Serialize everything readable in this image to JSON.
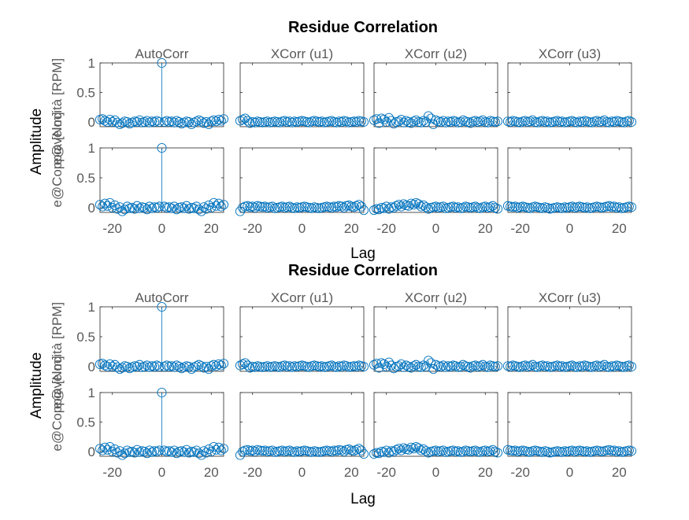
{
  "chart_data": [
    {
      "type": "stem",
      "title": "Residue Correlation",
      "xlabel": "Lag",
      "ylabel": "Amplitude",
      "output_labels": [
        "e@velocità [RPM]",
        "e@Coppia [Nm]"
      ],
      "columns": [
        "AutoCorr",
        "XCorr (u1)",
        "XCorr (u2)",
        "XCorr (u3)"
      ],
      "xlim": [
        -25,
        25
      ],
      "xticks": [
        -20,
        0,
        20
      ],
      "ylim_row1": [
        0,
        1
      ],
      "yticks_row1": [
        0,
        0.5,
        1
      ],
      "yticks_row1_labels": [
        "0",
        "0.5",
        "1"
      ],
      "ylim_row2": [
        0,
        1
      ],
      "yticks_row2": [
        0,
        0.5,
        1
      ],
      "yticks_row2_labels": [
        "0",
        "0.5",
        "1"
      ],
      "lags": [
        -25,
        -24,
        -23,
        -22,
        -21,
        -20,
        -19,
        -18,
        -17,
        -16,
        -15,
        -14,
        -13,
        -12,
        -11,
        -10,
        -9,
        -8,
        -7,
        -6,
        -5,
        -4,
        -3,
        -2,
        -1,
        0,
        1,
        2,
        3,
        4,
        5,
        6,
        7,
        8,
        9,
        10,
        11,
        12,
        13,
        14,
        15,
        16,
        17,
        18,
        19,
        20,
        21,
        22,
        23,
        24,
        25
      ],
      "series": [
        {
          "row": 0,
          "col": 0,
          "values": [
            0.04,
            0.05,
            0.02,
            0.0,
            0.04,
            0.0,
            0.03,
            -0.01,
            -0.04,
            -0.02,
            0.01,
            0.0,
            -0.03,
            -0.01,
            0.01,
            0.0,
            0.03,
            -0.01,
            0.0,
            0.02,
            -0.01,
            0.01,
            0.0,
            0.02,
            0.0,
            1.0,
            0.0,
            0.02,
            0.0,
            0.01,
            -0.01,
            0.02,
            0.0,
            -0.03,
            -0.01,
            0.01,
            0.0,
            -0.04,
            -0.01,
            0.01,
            0.03,
            0.01,
            -0.02,
            0.0,
            -0.04,
            0.01,
            0.03,
            0.01,
            0.04,
            0.02,
            0.05
          ]
        },
        {
          "row": 0,
          "col": 1,
          "values": [
            0.02,
            0.04,
            0.06,
            0.02,
            -0.02,
            0.0,
            -0.01,
            0.01,
            0.0,
            -0.01,
            0.0,
            0.01,
            -0.01,
            0.0,
            0.01,
            0.0,
            -0.01,
            0.01,
            0.02,
            0.0,
            0.01,
            -0.01,
            0.01,
            0.0,
            0.01,
            0.02,
            0.01,
            0.0,
            -0.01,
            0.01,
            0.02,
            0.01,
            0.0,
            0.01,
            -0.01,
            0.0,
            0.01,
            0.02,
            0.0,
            -0.01,
            0.01,
            0.0,
            0.02,
            0.01,
            -0.01,
            0.0,
            0.01,
            0.0,
            0.02,
            0.01,
            0.0
          ]
        },
        {
          "row": 0,
          "col": 2,
          "values": [
            0.03,
            0.05,
            -0.02,
            0.06,
            0.04,
            0.0,
            0.07,
            0.02,
            -0.03,
            0.0,
            0.01,
            0.04,
            -0.01,
            0.02,
            0.0,
            -0.02,
            0.01,
            0.03,
            0.0,
            -0.01,
            0.02,
            0.0,
            0.1,
            0.06,
            -0.04,
            0.03,
            0.01,
            0.0,
            0.02,
            -0.01,
            0.01,
            0.0,
            0.02,
            0.01,
            -0.01,
            0.0,
            0.03,
            0.01,
            0.0,
            -0.02,
            0.01,
            0.02,
            0.0,
            0.01,
            0.03,
            0.0,
            -0.01,
            0.02,
            0.01,
            0.0,
            0.01
          ]
        },
        {
          "row": 0,
          "col": 3,
          "values": [
            0.01,
            0.0,
            0.02,
            0.01,
            0.0,
            -0.01,
            0.01,
            0.02,
            0.0,
            0.01,
            0.03,
            0.0,
            -0.01,
            0.01,
            0.02,
            0.0,
            0.01,
            -0.01,
            0.0,
            0.01,
            0.02,
            0.0,
            0.01,
            -0.01,
            0.0,
            0.01,
            0.02,
            0.0,
            -0.01,
            0.01,
            0.0,
            0.02,
            0.01,
            0.0,
            -0.01,
            0.01,
            0.02,
            0.0,
            0.01,
            0.03,
            0.0,
            -0.01,
            0.01,
            0.0,
            0.02,
            0.01,
            0.0,
            -0.01,
            0.01,
            0.02,
            0.0
          ]
        },
        {
          "row": 1,
          "col": 0,
          "values": [
            0.05,
            0.02,
            0.07,
            0.03,
            0.08,
            0.0,
            0.04,
            -0.02,
            0.01,
            -0.06,
            -0.03,
            0.02,
            -0.01,
            0.0,
            -0.02,
            0.03,
            -0.01,
            0.01,
            0.0,
            -0.03,
            0.02,
            -0.01,
            0.01,
            0.0,
            0.02,
            1.0,
            0.02,
            0.0,
            0.01,
            -0.01,
            0.02,
            -0.03,
            0.0,
            0.01,
            -0.01,
            0.03,
            -0.02,
            0.0,
            -0.01,
            0.02,
            -0.03,
            -0.06,
            0.01,
            -0.02,
            0.04,
            0.0,
            0.08,
            0.03,
            0.07,
            0.02,
            0.05
          ]
        },
        {
          "row": 1,
          "col": 1,
          "values": [
            -0.06,
            0.0,
            0.02,
            0.03,
            0.01,
            0.02,
            0.0,
            0.03,
            0.02,
            0.01,
            0.02,
            0.0,
            0.01,
            0.02,
            -0.01,
            0.0,
            0.01,
            0.02,
            0.0,
            0.01,
            0.02,
            0.0,
            -0.01,
            0.01,
            0.0,
            0.01,
            0.02,
            0.01,
            0.0,
            -0.01,
            0.01,
            0.0,
            -0.01,
            0.0,
            0.01,
            0.02,
            0.01,
            0.0,
            0.02,
            0.01,
            0.03,
            0.02,
            0.0,
            0.03,
            0.04,
            0.02,
            0.01,
            0.03,
            0.05,
            0.02,
            -0.04
          ]
        },
        {
          "row": 1,
          "col": 2,
          "values": [
            -0.04,
            -0.02,
            -0.03,
            0.0,
            -0.01,
            0.02,
            -0.02,
            0.01,
            0.0,
            0.03,
            0.05,
            0.02,
            0.06,
            0.04,
            0.03,
            0.07,
            0.05,
            0.08,
            0.06,
            0.02,
            0.04,
            0.01,
            -0.02,
            0.0,
            0.01,
            0.02,
            0.0,
            0.01,
            0.02,
            -0.01,
            0.0,
            0.01,
            0.02,
            0.0,
            0.01,
            -0.01,
            0.0,
            0.02,
            0.01,
            0.0,
            0.01,
            0.02,
            0.0,
            -0.01,
            0.01,
            0.02,
            0.0,
            0.01,
            0.03,
            0.0,
            -0.02
          ]
        },
        {
          "row": 1,
          "col": 3,
          "values": [
            0.03,
            0.02,
            0.01,
            0.02,
            0.0,
            0.01,
            0.02,
            0.01,
            0.0,
            -0.01,
            0.01,
            0.02,
            0.01,
            0.0,
            -0.01,
            0.01,
            0.0,
            -0.02,
            -0.01,
            0.0,
            0.01,
            0.0,
            -0.01,
            0.01,
            0.0,
            0.01,
            0.02,
            0.0,
            0.01,
            0.02,
            0.01,
            0.0,
            0.01,
            -0.01,
            0.0,
            0.01,
            0.02,
            0.01,
            0.0,
            0.01,
            0.02,
            0.03,
            0.01,
            0.02,
            0.0,
            0.01,
            -0.01,
            0.0,
            0.01,
            0.02,
            0.01
          ]
        }
      ]
    },
    {
      "type": "stem",
      "title": "Residue Correlation",
      "xlabel": "Lag",
      "ylabel": "Amplitude",
      "output_labels": [
        "e@velocità [RPM]",
        "e@Coppia [Nm]"
      ],
      "columns": [
        "AutoCorr",
        "XCorr (u1)",
        "XCorr (u2)",
        "XCorr (u3)"
      ],
      "xlim": [
        -25,
        25
      ],
      "xticks": [
        -20,
        0,
        20
      ],
      "ylim_row1": [
        0,
        1
      ],
      "yticks_row1": [
        0,
        0.5,
        1
      ],
      "yticks_row1_labels": [
        "0",
        "0.5",
        "1"
      ],
      "ylim_row2": [
        0,
        1
      ],
      "yticks_row2": [
        0,
        0.5,
        1
      ],
      "yticks_row2_labels": [
        "0",
        "0.5",
        "1"
      ],
      "lags": [
        -25,
        -24,
        -23,
        -22,
        -21,
        -20,
        -19,
        -18,
        -17,
        -16,
        -15,
        -14,
        -13,
        -12,
        -11,
        -10,
        -9,
        -8,
        -7,
        -6,
        -5,
        -4,
        -3,
        -2,
        -1,
        0,
        1,
        2,
        3,
        4,
        5,
        6,
        7,
        8,
        9,
        10,
        11,
        12,
        13,
        14,
        15,
        16,
        17,
        18,
        19,
        20,
        21,
        22,
        23,
        24,
        25
      ],
      "series": [
        {
          "row": 0,
          "col": 0,
          "values": [
            0.04,
            0.05,
            0.02,
            0.0,
            0.04,
            0.0,
            0.03,
            -0.01,
            -0.04,
            -0.02,
            0.01,
            0.0,
            -0.03,
            -0.01,
            0.01,
            0.0,
            0.03,
            -0.01,
            0.0,
            0.02,
            -0.01,
            0.01,
            0.0,
            0.02,
            0.0,
            1.0,
            0.0,
            0.02,
            0.0,
            0.01,
            -0.01,
            0.02,
            0.0,
            -0.03,
            -0.01,
            0.01,
            0.0,
            -0.04,
            -0.01,
            0.01,
            0.03,
            0.01,
            -0.02,
            0.0,
            -0.04,
            0.01,
            0.03,
            0.01,
            0.04,
            0.02,
            0.05
          ]
        },
        {
          "row": 0,
          "col": 1,
          "values": [
            0.02,
            0.04,
            0.06,
            0.02,
            -0.02,
            0.0,
            -0.01,
            0.01,
            0.0,
            -0.01,
            0.0,
            0.01,
            -0.01,
            0.0,
            0.01,
            0.0,
            -0.01,
            0.01,
            0.02,
            0.0,
            0.01,
            -0.01,
            0.01,
            0.0,
            0.01,
            0.02,
            0.01,
            0.0,
            -0.01,
            0.01,
            0.02,
            0.01,
            0.0,
            0.01,
            -0.01,
            0.0,
            0.01,
            0.02,
            0.0,
            -0.01,
            0.01,
            0.0,
            0.02,
            0.01,
            -0.01,
            0.0,
            0.01,
            0.0,
            0.02,
            0.01,
            0.0
          ]
        },
        {
          "row": 0,
          "col": 2,
          "values": [
            0.03,
            0.05,
            -0.02,
            0.06,
            0.04,
            0.0,
            0.07,
            0.02,
            -0.03,
            0.0,
            0.01,
            0.04,
            -0.01,
            0.02,
            0.0,
            -0.02,
            0.01,
            0.03,
            0.0,
            -0.01,
            0.02,
            0.0,
            0.1,
            0.06,
            -0.04,
            0.03,
            0.01,
            0.0,
            0.02,
            -0.01,
            0.01,
            0.0,
            0.02,
            0.01,
            -0.01,
            0.0,
            0.03,
            0.01,
            0.0,
            -0.02,
            0.01,
            0.02,
            0.0,
            0.01,
            0.03,
            0.0,
            -0.01,
            0.02,
            0.01,
            0.0,
            0.01
          ]
        },
        {
          "row": 0,
          "col": 3,
          "values": [
            0.01,
            0.0,
            0.02,
            0.01,
            0.0,
            -0.01,
            0.01,
            0.02,
            0.0,
            0.01,
            0.03,
            0.0,
            -0.01,
            0.01,
            0.02,
            0.0,
            0.01,
            -0.01,
            0.0,
            0.01,
            0.02,
            0.0,
            0.01,
            -0.01,
            0.0,
            0.01,
            0.02,
            0.0,
            -0.01,
            0.01,
            0.0,
            0.02,
            0.01,
            0.0,
            -0.01,
            0.01,
            0.02,
            0.0,
            0.01,
            0.03,
            0.0,
            -0.01,
            0.01,
            0.0,
            0.02,
            0.01,
            0.0,
            -0.01,
            0.01,
            0.02,
            0.0
          ]
        },
        {
          "row": 1,
          "col": 0,
          "values": [
            0.05,
            0.02,
            0.07,
            0.03,
            0.08,
            0.0,
            0.04,
            -0.02,
            0.01,
            -0.06,
            -0.03,
            0.02,
            -0.01,
            0.0,
            -0.02,
            0.03,
            -0.01,
            0.01,
            0.0,
            -0.03,
            0.02,
            -0.01,
            0.01,
            0.0,
            0.02,
            1.0,
            0.02,
            0.0,
            0.01,
            -0.01,
            0.02,
            -0.03,
            0.0,
            0.01,
            -0.01,
            0.03,
            -0.02,
            0.0,
            -0.01,
            0.02,
            -0.03,
            -0.06,
            0.01,
            -0.02,
            0.04,
            0.0,
            0.08,
            0.03,
            0.07,
            0.02,
            0.05
          ]
        },
        {
          "row": 1,
          "col": 1,
          "values": [
            -0.06,
            0.0,
            0.02,
            0.03,
            0.01,
            0.02,
            0.0,
            0.03,
            0.02,
            0.01,
            0.02,
            0.0,
            0.01,
            0.02,
            -0.01,
            0.0,
            0.01,
            0.02,
            0.0,
            0.01,
            0.02,
            0.0,
            -0.01,
            0.01,
            0.0,
            0.01,
            0.02,
            0.01,
            0.0,
            -0.01,
            0.01,
            0.0,
            -0.01,
            0.0,
            0.01,
            0.02,
            0.01,
            0.0,
            0.02,
            0.01,
            0.03,
            0.02,
            0.0,
            0.03,
            0.04,
            0.02,
            0.01,
            0.03,
            0.05,
            0.02,
            -0.04
          ]
        },
        {
          "row": 1,
          "col": 2,
          "values": [
            -0.04,
            -0.02,
            -0.03,
            0.0,
            -0.01,
            0.02,
            -0.02,
            0.01,
            0.0,
            0.03,
            0.05,
            0.02,
            0.06,
            0.04,
            0.03,
            0.07,
            0.05,
            0.08,
            0.06,
            0.02,
            0.04,
            0.01,
            -0.02,
            0.0,
            0.01,
            0.02,
            0.0,
            0.01,
            0.02,
            -0.01,
            0.0,
            0.01,
            0.02,
            0.0,
            0.01,
            -0.01,
            0.0,
            0.02,
            0.01,
            0.0,
            0.01,
            0.02,
            0.0,
            -0.01,
            0.01,
            0.02,
            0.0,
            0.01,
            0.03,
            0.0,
            -0.02
          ]
        },
        {
          "row": 1,
          "col": 3,
          "values": [
            0.03,
            0.02,
            0.01,
            0.02,
            0.0,
            0.01,
            0.02,
            0.01,
            0.0,
            -0.01,
            0.01,
            0.02,
            0.01,
            0.0,
            -0.01,
            0.01,
            0.0,
            -0.02,
            -0.01,
            0.0,
            0.01,
            0.0,
            -0.01,
            0.01,
            0.0,
            0.01,
            0.02,
            0.0,
            0.01,
            0.02,
            0.01,
            0.0,
            0.01,
            -0.01,
            0.0,
            0.01,
            0.02,
            0.01,
            0.0,
            0.01,
            0.02,
            0.03,
            0.01,
            0.02,
            0.0,
            0.01,
            -0.01,
            0.0,
            0.01,
            0.02,
            0.01
          ]
        }
      ]
    }
  ],
  "colors": {
    "stem": "#0072BD",
    "frame": "#262626",
    "tick_text": "#595959",
    "title_text": "#000000"
  }
}
